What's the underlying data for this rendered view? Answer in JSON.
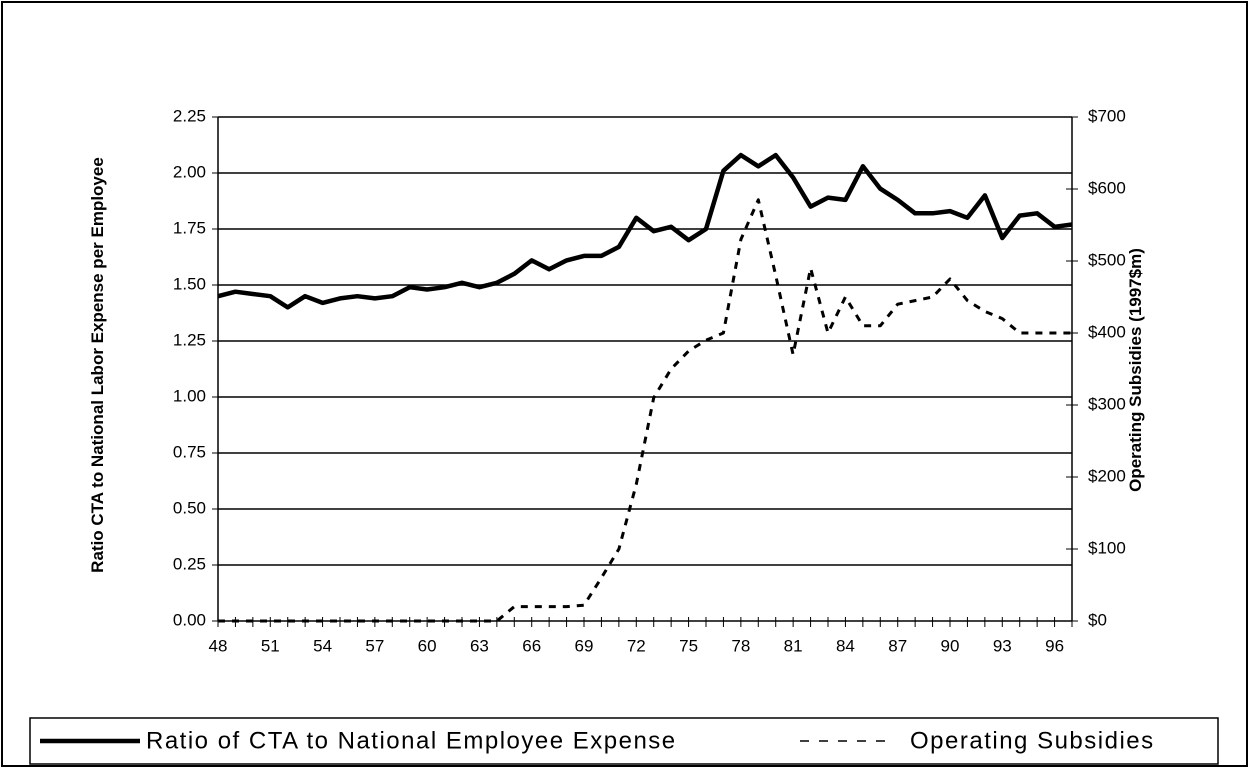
{
  "chart_data": {
    "type": "line",
    "ylabel": "Ratio CTA to National Labor Expense per Employee",
    "y2label": "Operating Subsidies (1997$m)",
    "x": [
      48,
      49,
      50,
      51,
      52,
      53,
      54,
      55,
      56,
      57,
      58,
      59,
      60,
      61,
      62,
      63,
      64,
      65,
      66,
      67,
      68,
      69,
      70,
      71,
      72,
      73,
      74,
      75,
      76,
      77,
      78,
      79,
      80,
      81,
      82,
      83,
      84,
      85,
      86,
      87,
      88,
      89,
      90,
      91,
      92,
      93,
      94,
      95,
      96,
      97
    ],
    "xlim": [
      48,
      97
    ],
    "xticks": [
      48,
      51,
      54,
      57,
      60,
      63,
      66,
      69,
      72,
      75,
      78,
      81,
      84,
      87,
      90,
      93,
      96
    ],
    "ylim": [
      0,
      2.25
    ],
    "yticks": [
      {
        "value": 0,
        "label": "0.00"
      },
      {
        "value": 0.25,
        "label": "0.25"
      },
      {
        "value": 0.5,
        "label": "0.50"
      },
      {
        "value": 0.75,
        "label": "0.75"
      },
      {
        "value": 1,
        "label": "1.00"
      },
      {
        "value": 1.25,
        "label": "1.25"
      },
      {
        "value": 1.5,
        "label": "1.50"
      },
      {
        "value": 1.75,
        "label": "1.75"
      },
      {
        "value": 2,
        "label": "2.00"
      },
      {
        "value": 2.25,
        "label": "2.25"
      }
    ],
    "y2lim": [
      0,
      700
    ],
    "y2ticks": [
      {
        "value": 0,
        "label": "$0"
      },
      {
        "value": 100,
        "label": "$100"
      },
      {
        "value": 200,
        "label": "$200"
      },
      {
        "value": 300,
        "label": "$300"
      },
      {
        "value": 400,
        "label": "$400"
      },
      {
        "value": 500,
        "label": "$500"
      },
      {
        "value": 600,
        "label": "$600"
      },
      {
        "value": 700,
        "label": "$700"
      }
    ],
    "grid": true,
    "legend": "bottom",
    "series": [
      {
        "name": "Ratio of CTA to National Employee Expense",
        "color": "#000000",
        "style": "solid",
        "values": [
          1.45,
          1.47,
          1.46,
          1.45,
          1.4,
          1.45,
          1.42,
          1.44,
          1.45,
          1.44,
          1.45,
          1.49,
          1.48,
          1.49,
          1.51,
          1.49,
          1.51,
          1.55,
          1.61,
          1.57,
          1.61,
          1.63,
          1.63,
          1.67,
          1.8,
          1.74,
          1.76,
          1.7,
          1.75,
          2.01,
          2.08,
          2.03,
          2.08,
          1.98,
          1.85,
          1.89,
          1.88,
          2.03,
          1.93,
          1.88,
          1.82,
          1.82,
          1.83,
          1.8,
          1.9,
          1.71,
          1.81,
          1.82,
          1.76,
          1.77
        ]
      },
      {
        "name": "Operating Subsidies",
        "color": "#000000",
        "style": "dashed",
        "axis": "y2",
        "values": [
          0,
          0,
          0,
          0,
          0,
          0,
          0,
          0,
          0,
          0,
          0,
          0,
          0,
          0,
          0,
          0,
          0,
          20,
          20,
          20,
          20,
          22,
          60,
          100,
          190,
          310,
          350,
          375,
          390,
          400,
          530,
          585,
          480,
          370,
          490,
          400,
          450,
          410,
          410,
          440,
          445,
          450,
          475,
          445,
          430,
          420,
          400,
          400,
          400,
          400
        ]
      }
    ]
  }
}
